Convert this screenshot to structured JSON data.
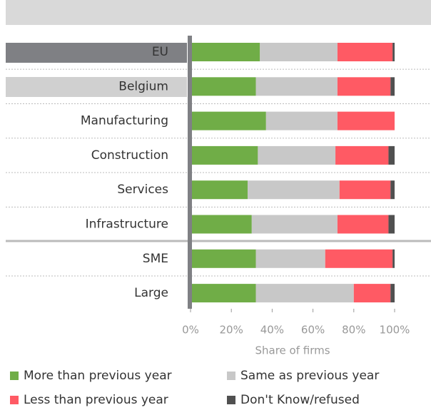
{
  "chart_data": {
    "type": "stacked-bar-horizontal",
    "categories": [
      "EU",
      "Belgium",
      "Manufacturing",
      "Construction",
      "Services",
      "Infrastructure",
      "SME",
      "Large"
    ],
    "series": [
      {
        "name": "More than previous year",
        "color": "#70ad47",
        "values": [
          34,
          32,
          37,
          33,
          28,
          30,
          32,
          32
        ]
      },
      {
        "name": "Same as previous year",
        "color": "#c8c8c8",
        "values": [
          38,
          40,
          35,
          38,
          45,
          42,
          34,
          48
        ]
      },
      {
        "name": "Less than previous year",
        "color": "#ff5a64",
        "values": [
          27,
          26,
          28,
          26,
          25,
          25,
          33,
          18
        ]
      },
      {
        "name": "Don't Know/refused",
        "color": "#505050",
        "values": [
          1,
          2,
          0,
          3,
          2,
          3,
          1,
          2
        ]
      }
    ],
    "xlim": [
      0,
      100
    ],
    "xticks": [
      {
        "value": 0,
        "label": "0%"
      },
      {
        "value": 20,
        "label": "20%"
      },
      {
        "value": 40,
        "label": "40%"
      },
      {
        "value": 60,
        "label": "60%"
      },
      {
        "value": 80,
        "label": "80%"
      },
      {
        "value": 100,
        "label": "100%"
      }
    ],
    "xlabel": "Share of firms"
  }
}
